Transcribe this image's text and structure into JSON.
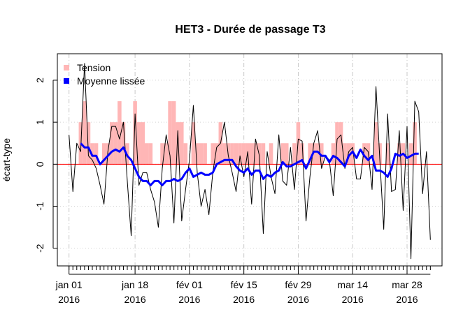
{
  "chart_data": {
    "type": "line",
    "title": "HET3 - Durée de passage T3",
    "y_label": "écart-type",
    "x": [
      "2016-01-01",
      "2016-01-02",
      "2016-01-03",
      "2016-01-04",
      "2016-01-05",
      "2016-01-06",
      "2016-01-07",
      "2016-01-08",
      "2016-01-09",
      "2016-01-10",
      "2016-01-11",
      "2016-01-12",
      "2016-01-13",
      "2016-01-14",
      "2016-01-15",
      "2016-01-16",
      "2016-01-17",
      "2016-01-18",
      "2016-01-19",
      "2016-01-20",
      "2016-01-21",
      "2016-01-22",
      "2016-01-23",
      "2016-01-24",
      "2016-01-25",
      "2016-01-26",
      "2016-01-27",
      "2016-01-28",
      "2016-01-29",
      "2016-01-30",
      "2016-01-31",
      "2016-02-01",
      "2016-02-02",
      "2016-02-03",
      "2016-02-04",
      "2016-02-05",
      "2016-02-06",
      "2016-02-07",
      "2016-02-08",
      "2016-02-09",
      "2016-02-10",
      "2016-02-11",
      "2016-02-12",
      "2016-02-13",
      "2016-02-14",
      "2016-02-15",
      "2016-02-16",
      "2016-02-17",
      "2016-02-18",
      "2016-02-19",
      "2016-02-20",
      "2016-02-21",
      "2016-02-22",
      "2016-02-23",
      "2016-02-24",
      "2016-02-25",
      "2016-02-26",
      "2016-02-27",
      "2016-02-28",
      "2016-02-29",
      "2016-03-01",
      "2016-03-02",
      "2016-03-03",
      "2016-03-04",
      "2016-03-05",
      "2016-03-06",
      "2016-03-07",
      "2016-03-08",
      "2016-03-09",
      "2016-03-10",
      "2016-03-11",
      "2016-03-12",
      "2016-03-13",
      "2016-03-14",
      "2016-03-15",
      "2016-03-16",
      "2016-03-17",
      "2016-03-18",
      "2016-03-19",
      "2016-03-20",
      "2016-03-21",
      "2016-03-22",
      "2016-03-23",
      "2016-03-24",
      "2016-03-25",
      "2016-03-26",
      "2016-03-27",
      "2016-03-28",
      "2016-03-29",
      "2016-03-30",
      "2016-03-31",
      "2016-04-01",
      "2016-04-02",
      "2016-04-03"
    ],
    "series": [
      {
        "name": "Tension",
        "kind": "bar",
        "color": "#ffb6b6",
        "values": [
          0,
          0,
          0,
          1,
          1.5,
          1,
          0.5,
          0.5,
          0,
          0.5,
          0.5,
          1,
          1,
          1.5,
          1,
          0.5,
          0,
          1.5,
          1,
          1,
          0.5,
          0.5,
          0,
          0,
          0.5,
          0.5,
          1.5,
          1.5,
          1,
          1,
          0.5,
          0,
          1,
          0.5,
          0.5,
          0.5,
          0,
          0.5,
          0.5,
          1,
          0.5,
          0.5,
          0.5,
          0.5,
          0.5,
          0.5,
          0.5,
          0.5,
          0.5,
          0.5,
          0.5,
          0,
          0.5,
          0,
          0,
          0.5,
          0.5,
          0,
          0.5,
          1,
          0.5,
          0,
          0.5,
          0.5,
          0.5,
          0.5,
          0,
          0,
          0.5,
          1,
          1,
          0.5,
          0.5,
          0.5,
          0,
          0,
          0.5,
          0.5,
          0,
          1,
          0.5,
          0,
          0.5,
          0,
          0,
          0.5,
          0.5,
          0,
          0.5,
          1,
          0,
          0,
          0,
          0
        ]
      },
      {
        "kind": "line",
        "color": "#000000",
        "width": 1,
        "values": [
          0.7,
          -0.65,
          0.5,
          0.3,
          2.4,
          0.2,
          0.1,
          -0.1,
          -0.5,
          -0.95,
          0.3,
          0.9,
          0.9,
          0.6,
          1.0,
          -0.4,
          -1.7,
          1.2,
          -0.5,
          -0.2,
          -0.2,
          -0.6,
          -0.9,
          -1.5,
          -0.1,
          0.7,
          0.2,
          -1.4,
          0.8,
          -1.35,
          -0.6,
          0.1,
          1.4,
          -0.2,
          -1.0,
          -0.6,
          -1.2,
          -0.2,
          0.4,
          0.5,
          1.0,
          0.2,
          -0.2,
          -0.65,
          0.2,
          -0.3,
          0.3,
          -0.95,
          0.6,
          0.2,
          -1.65,
          0.3,
          -0.3,
          -0.7,
          0.7,
          -0.4,
          -0.5,
          0.4,
          -0.6,
          0.6,
          0.55,
          -1.35,
          -0.3,
          0.5,
          0.8,
          -0.1,
          0.2,
          0.1,
          -0.75,
          0.6,
          0.7,
          -0.1,
          0.3,
          0.4,
          -0.35,
          -0.35,
          0.4,
          0.3,
          -0.6,
          1.85,
          0.1,
          -1.55,
          1.2,
          -0.65,
          -0.6,
          0.8,
          -1.1,
          0.9,
          -2.25,
          1.5,
          1.25,
          -0.7,
          0.3,
          -1.8
        ]
      },
      {
        "name": "Moyenne lissée",
        "kind": "line",
        "color": "#0000ff",
        "width": 3,
        "values": [
          null,
          null,
          null,
          0.5,
          0.4,
          0.4,
          0.2,
          0.2,
          0.0,
          0.1,
          0.2,
          0.3,
          0.35,
          0.3,
          0.4,
          0.2,
          0.1,
          -0.1,
          -0.3,
          -0.4,
          -0.4,
          -0.5,
          -0.4,
          -0.4,
          -0.5,
          -0.4,
          -0.4,
          -0.35,
          -0.4,
          -0.35,
          -0.2,
          -0.1,
          -0.3,
          -0.25,
          -0.2,
          -0.25,
          -0.25,
          -0.2,
          0.0,
          0.05,
          0.1,
          0.1,
          0.1,
          -0.05,
          -0.15,
          -0.2,
          -0.1,
          -0.25,
          -0.15,
          -0.15,
          -0.35,
          -0.25,
          -0.3,
          -0.2,
          -0.15,
          0.05,
          -0.05,
          -0.05,
          0.0,
          0.05,
          0.1,
          -0.1,
          0.1,
          0.3,
          0.3,
          0.2,
          0.2,
          0.05,
          0.2,
          0.15,
          0.05,
          -0.05,
          0.2,
          0.3,
          0.15,
          0.35,
          0.2,
          0.1,
          0.2,
          -0.15,
          -0.15,
          -0.2,
          -0.3,
          -0.1,
          0.25,
          0.2,
          0.25,
          0.15,
          0.2,
          0.25,
          0.25,
          null,
          null,
          null
        ]
      }
    ],
    "hline": {
      "value": 0,
      "color": "#ff0000"
    },
    "xlim": [
      "2015-12-29",
      "2016-04-06"
    ],
    "xticks": [
      {
        "value": "2016-01-01",
        "label": "jan 01\n2016"
      },
      {
        "value": "2016-01-18",
        "label": "jan 18\n2016"
      },
      {
        "value": "2016-02-01",
        "label": "fév 01\n2016"
      },
      {
        "value": "2016-02-15",
        "label": "fév 15\n2016"
      },
      {
        "value": "2016-02-29",
        "label": "fév 29\n2016"
      },
      {
        "value": "2016-03-14",
        "label": "mar 14\n2016"
      },
      {
        "value": "2016-03-28",
        "label": "mar 28\n2016"
      }
    ],
    "ylim": [
      -2.42,
      2.63
    ],
    "yticks": [
      -2,
      -1,
      0,
      1,
      2
    ],
    "grid": true,
    "legend": "top-left"
  }
}
